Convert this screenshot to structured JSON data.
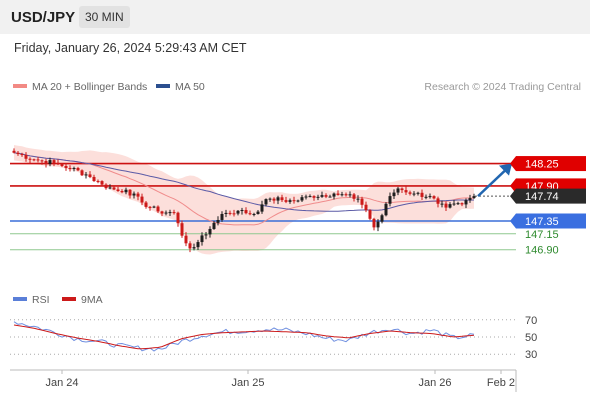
{
  "header": {
    "symbol": "USD/JPY",
    "timeframe": "30 MIN"
  },
  "timestamp": "Friday, January 26, 2024 5:29:43 AM CET",
  "legend": {
    "ma20": "MA 20 + Bollinger Bands",
    "ma50": "MA 50",
    "copyright": "Research © 2024 Trading Central"
  },
  "rsi_legend": {
    "rsi": "RSI",
    "ma": "9MA"
  },
  "colors": {
    "resistance": "#cc1111",
    "support": "#3a6fd8",
    "minor_support": "#8fc88f",
    "arrow": "#2166b0",
    "bollinger": "#fbd9d5",
    "ma20": "#f08c8c",
    "ma50": "#5a5aa6",
    "bull": "#1e1e1e",
    "bear": "#cc1a1a"
  },
  "chart_data": [
    {
      "type": "candlestick",
      "title": "USD/JPY",
      "x_labels": [
        "Jan 24",
        "Jan 25",
        "Jan 26",
        "Feb 2"
      ],
      "y_range": [
        146.5,
        148.6
      ],
      "levels": [
        {
          "value": 148.25,
          "label": "148.25",
          "kind": "resistance",
          "arrow_target": true
        },
        {
          "value": 147.9,
          "label": "147.90",
          "kind": "resistance"
        },
        {
          "value": 147.74,
          "label": "147.74",
          "kind": "last_price"
        },
        {
          "value": 147.35,
          "label": "147.35",
          "kind": "support"
        },
        {
          "value": 147.15,
          "label": "147.15",
          "kind": "minor_support"
        },
        {
          "value": 146.9,
          "label": "146.90",
          "kind": "minor_support"
        }
      ],
      "close_anchors": [
        [
          0,
          148.42
        ],
        [
          6,
          148.3
        ],
        [
          10,
          148.26
        ],
        [
          14,
          148.18
        ],
        [
          18,
          148.08
        ],
        [
          22,
          147.92
        ],
        [
          26,
          147.82
        ],
        [
          28,
          147.84
        ],
        [
          32,
          147.64
        ],
        [
          36,
          147.5
        ],
        [
          40,
          147.48
        ],
        [
          42,
          147.12
        ],
        [
          44,
          146.92
        ],
        [
          46,
          147.02
        ],
        [
          48,
          147.14
        ],
        [
          50,
          147.32
        ],
        [
          52,
          147.46
        ],
        [
          56,
          147.51
        ],
        [
          60,
          147.46
        ],
        [
          62,
          147.61
        ],
        [
          64,
          147.7
        ],
        [
          70,
          147.66
        ],
        [
          74,
          147.74
        ],
        [
          80,
          147.78
        ],
        [
          86,
          147.7
        ],
        [
          88,
          147.52
        ],
        [
          90,
          147.25
        ],
        [
          92,
          147.44
        ],
        [
          94,
          147.74
        ],
        [
          96,
          147.86
        ],
        [
          100,
          147.78
        ],
        [
          104,
          147.74
        ],
        [
          106,
          147.62
        ],
        [
          108,
          147.56
        ],
        [
          112,
          147.61
        ],
        [
          115,
          147.74
        ]
      ],
      "ma20_band": "Bollinger envelope around MA 20",
      "ma50": "slower moving average"
    },
    {
      "type": "line",
      "title": "RSI",
      "y_ticks": [
        30,
        50,
        70
      ],
      "series": [
        {
          "name": "RSI",
          "values": [
            68,
            62,
            55,
            48,
            45,
            40,
            37,
            36,
            45,
            52,
            56,
            57,
            59,
            58,
            54,
            48,
            46,
            55,
            60,
            54,
            58,
            49,
            52
          ]
        },
        {
          "name": "9MA",
          "values": [
            64,
            60,
            54,
            49,
            45,
            40,
            36,
            38,
            48,
            53,
            55,
            56,
            57,
            56,
            55,
            51,
            49,
            54,
            57,
            55,
            54,
            50,
            52
          ]
        }
      ]
    }
  ]
}
